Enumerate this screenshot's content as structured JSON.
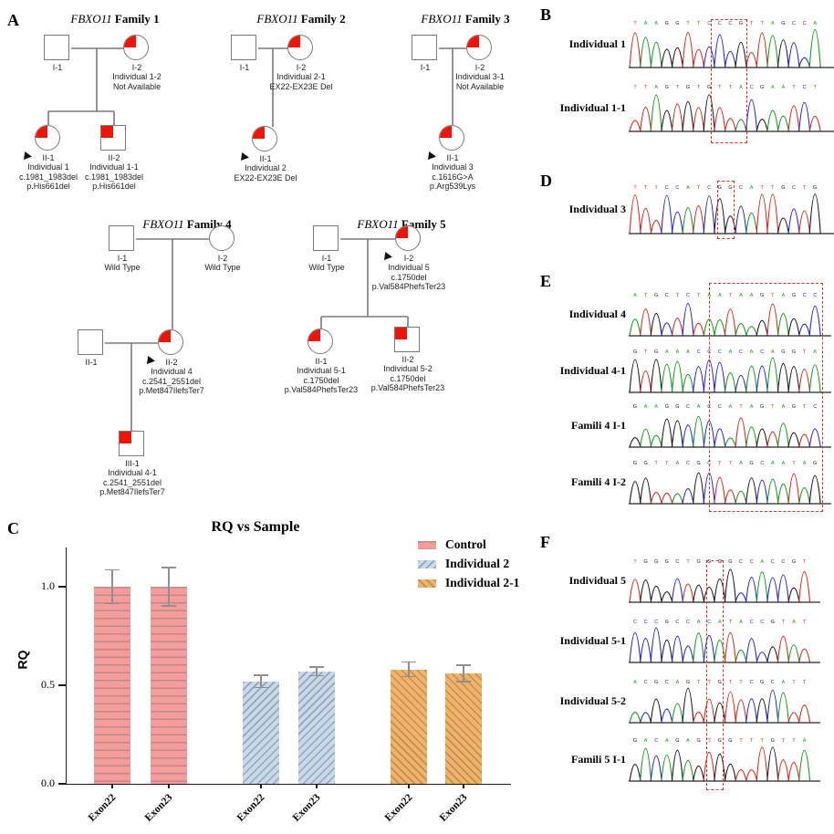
{
  "figure": {
    "panel_letters": {
      "a": "A",
      "b": "B",
      "c": "C",
      "d": "D",
      "e": "E",
      "f": "F"
    }
  },
  "colors": {
    "affected_red": "#ee1507",
    "pedigree_line_gray": "#7a7a7a",
    "highlight_red": "#e02a1c",
    "trace_a_green": "#119a1c",
    "trace_c_blue": "#2326cf",
    "trace_g_black": "#161616",
    "trace_t_red": "#d8271a"
  },
  "pedigree": {
    "families": [
      {
        "id": "family-1",
        "title_gene": "FBXO11",
        "title_rest": " Family 1",
        "nodes": [
          {
            "id": "I-1",
            "shape": "square",
            "affected": false,
            "proband": false,
            "labels": [
              "I-1"
            ]
          },
          {
            "id": "I-2",
            "shape": "circle",
            "affected": true,
            "proband": false,
            "labels": [
              "I-2",
              "Individual 1-2",
              "Not Available"
            ]
          },
          {
            "id": "II-1",
            "shape": "circle",
            "affected": true,
            "proband": true,
            "labels": [
              "II-1",
              "Individual 1",
              "c.1981_1983del",
              "p.His661del"
            ]
          },
          {
            "id": "II-2",
            "shape": "square",
            "affected": true,
            "proband": false,
            "labels": [
              "II-2",
              "Individual 1-1",
              "c.1981_1983del",
              "p.His661del"
            ]
          }
        ]
      },
      {
        "id": "family-2",
        "title_gene": "FBXO11",
        "title_rest": " Family 2",
        "nodes": [
          {
            "id": "I-1",
            "shape": "square",
            "affected": false,
            "proband": false,
            "labels": [
              "I-1"
            ]
          },
          {
            "id": "I-2",
            "shape": "circle",
            "affected": true,
            "proband": false,
            "labels": [
              "I-2",
              "Individual 2-1",
              "EX22-EX23E Del"
            ]
          },
          {
            "id": "II-1",
            "shape": "circle",
            "affected": true,
            "proband": true,
            "labels": [
              "II-1",
              "Individual 2",
              "EX22-EX23E Del"
            ]
          }
        ]
      },
      {
        "id": "family-3",
        "title_gene": "FBXO11",
        "title_rest": " Family 3",
        "nodes": [
          {
            "id": "I-1",
            "shape": "square",
            "affected": false,
            "proband": false,
            "labels": [
              "I-1"
            ]
          },
          {
            "id": "I-2",
            "shape": "circle",
            "affected": true,
            "proband": false,
            "labels": [
              "I-2",
              "Individual 3-1",
              "Not Available"
            ]
          },
          {
            "id": "II-1",
            "shape": "circle",
            "affected": true,
            "proband": true,
            "labels": [
              "II-1",
              "Individual 3",
              "c.1616G>A",
              "p.Arg539Lys"
            ]
          }
        ]
      },
      {
        "id": "family-4",
        "title_gene": "FBXO11",
        "title_rest": " Family 4",
        "nodes": [
          {
            "id": "I-1",
            "shape": "square",
            "affected": false,
            "proband": false,
            "labels": [
              "I-1",
              "Wild Type"
            ]
          },
          {
            "id": "I-2",
            "shape": "circle",
            "affected": false,
            "proband": false,
            "labels": [
              "I-2",
              "Wild Type"
            ]
          },
          {
            "id": "II-1",
            "shape": "square",
            "affected": false,
            "proband": false,
            "labels": [
              "II-1"
            ]
          },
          {
            "id": "II-2",
            "shape": "circle",
            "affected": true,
            "proband": true,
            "labels": [
              "II-2",
              "Individual 4",
              "c.2541_2551del",
              "p.Met847IlefsTer7"
            ]
          },
          {
            "id": "III-1",
            "shape": "square",
            "affected": true,
            "proband": false,
            "labels": [
              "III-1",
              "Individual 4-1",
              "c.2541_2551del",
              "p.Met847IlefsTer7"
            ]
          }
        ]
      },
      {
        "id": "family-5",
        "title_gene": "FBXO11",
        "title_rest": " Family 5",
        "nodes": [
          {
            "id": "I-1",
            "shape": "square",
            "affected": false,
            "proband": false,
            "labels": [
              "I-1",
              "Wild Type"
            ]
          },
          {
            "id": "I-2",
            "shape": "circle",
            "affected": true,
            "proband": true,
            "labels": [
              "I-2",
              "Individual 5",
              "c.1750del",
              "p.Val584PhefsTer23"
            ]
          },
          {
            "id": "II-1",
            "shape": "circle",
            "affected": true,
            "proband": false,
            "labels": [
              "II-1",
              "Individual 5-1",
              "c.1750del",
              "p.Val584PhefsTer23"
            ]
          },
          {
            "id": "II-2",
            "shape": "square",
            "affected": true,
            "proband": false,
            "labels": [
              "II-2",
              "Individual 5-2",
              "c.1750del",
              "p.Val584PhefsTer23"
            ]
          }
        ]
      }
    ]
  },
  "chromatograms": {
    "b": {
      "letter": "B",
      "rows": [
        "Individual 1",
        "Individual 1-1"
      ]
    },
    "d": {
      "letter": "D",
      "rows": [
        "Individual 3"
      ]
    },
    "e": {
      "letter": "E",
      "rows": [
        "Individual 4",
        "Individual 4-1",
        "Famili 4 I-1",
        "Famili 4 I-2"
      ]
    },
    "f": {
      "letter": "F",
      "rows": [
        "Individual 5",
        "Individual 5-1",
        "Individual 5-2",
        "Famili 5 I-1"
      ]
    }
  },
  "chart_data": {
    "type": "bar",
    "title": "RQ vs Sample",
    "ylabel": "RQ",
    "xlabel": "",
    "yticks": [
      "0.0",
      "0.5",
      "1.0"
    ],
    "ytick_values": [
      0,
      0.5,
      1.0
    ],
    "ylim": [
      0,
      1.2
    ],
    "grid": false,
    "legend_position": "top-right",
    "categories": [
      "Exon22",
      "Exon23"
    ],
    "series": [
      {
        "name": "Control",
        "color": "#f79b9b",
        "hatch": "horizontal",
        "values": [
          1.0,
          1.0
        ],
        "errors": [
          0.09,
          0.1
        ]
      },
      {
        "name": "Individual 2",
        "color": "#c9d9ec",
        "hatch": "diagonal-forward",
        "values": [
          0.52,
          0.57
        ],
        "errors": [
          0.035,
          0.025
        ]
      },
      {
        "name": "Individual 2-1",
        "color": "#f2b369",
        "hatch": "diagonal-backward",
        "values": [
          0.58,
          0.56
        ],
        "errors": [
          0.04,
          0.045
        ]
      }
    ]
  }
}
